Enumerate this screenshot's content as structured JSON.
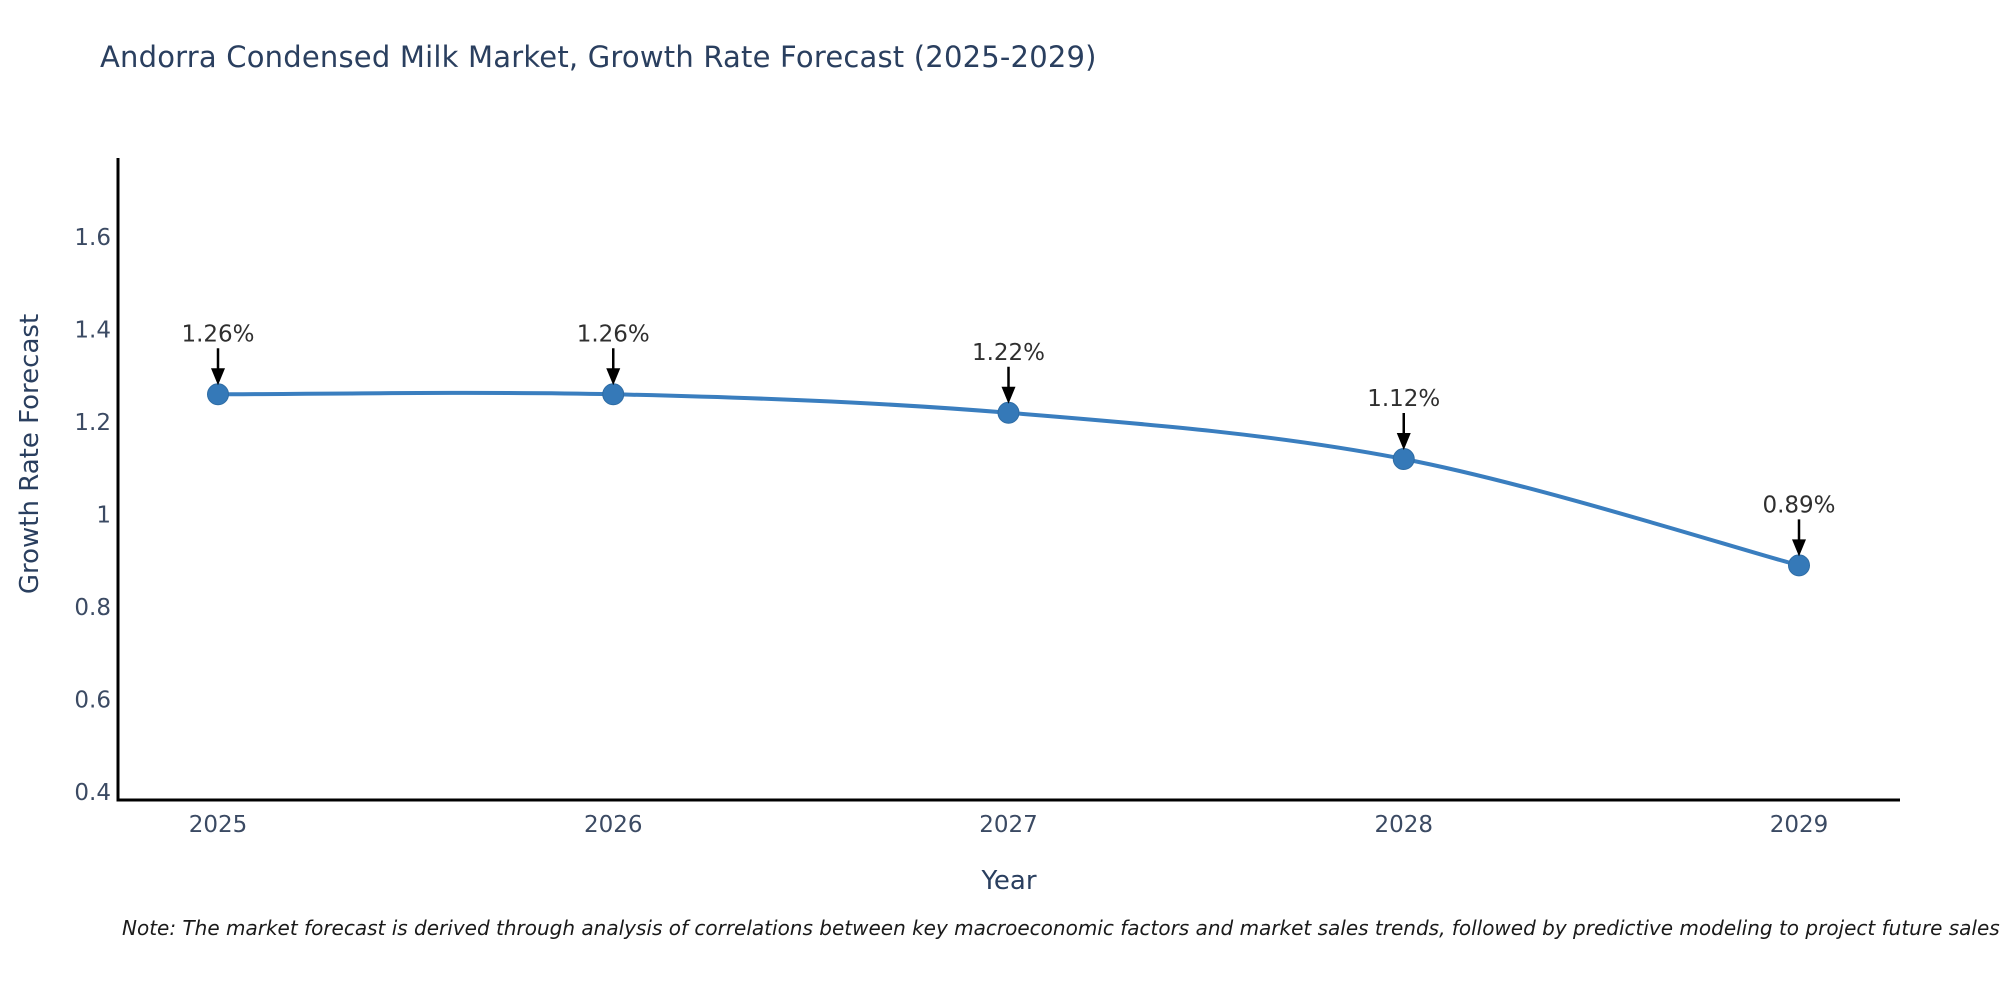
{
  "title": "Andorra Condensed Milk Market, Growth Rate Forecast (2025-2029)",
  "note": "Note: The market forecast is derived through analysis of correlations between key macroeconomic factors and market sales trends, followed by predictive modeling to project future sales",
  "chart_data": {
    "type": "line",
    "title": "Andorra Condensed Milk Market, Growth Rate Forecast (2025-2029)",
    "x": [
      "2025",
      "2026",
      "2027",
      "2028",
      "2029"
    ],
    "values": [
      1.26,
      1.26,
      1.22,
      1.12,
      0.89
    ],
    "point_labels": [
      "1.26%",
      "1.26%",
      "1.22%",
      "1.12%",
      "0.89%"
    ],
    "xlabel": "Year",
    "ylabel": "Growth Rate Forecast",
    "yticks": [
      0.4,
      0.6,
      0.8,
      1,
      1.2,
      1.4,
      1.6
    ],
    "ytick_labels": [
      "0.4",
      "0.6",
      "0.8",
      "1",
      "1.2",
      "1.4",
      "1.6"
    ],
    "ylim": [
      0.4,
      1.77
    ],
    "xlim_hint": "axis extends ~0.25 year before 2025 and ~0.26 year after 2029",
    "grid": false,
    "legend": false,
    "line_shape": "spline",
    "colors": {
      "line": "#3a7ebf",
      "marker": "#3579b8",
      "marker_stroke": "#2e6ca4",
      "axis": "#000000",
      "title_text": "#2a3f5f",
      "tick_text": "#3b4a63",
      "annotation_text": "#2f2f2f",
      "arrow": "#000000",
      "background": "#ffffff"
    }
  }
}
